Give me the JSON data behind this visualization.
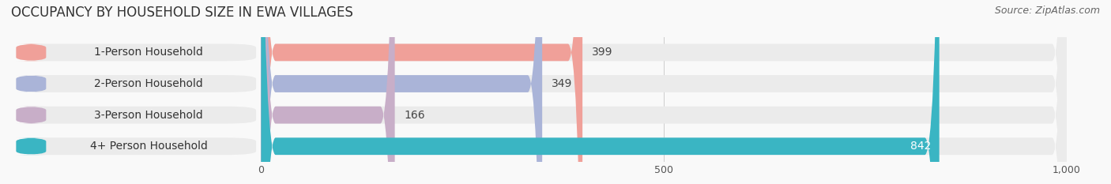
{
  "title": "OCCUPANCY BY HOUSEHOLD SIZE IN EWA VILLAGES",
  "source": "Source: ZipAtlas.com",
  "categories": [
    "1-Person Household",
    "2-Person Household",
    "3-Person Household",
    "4+ Person Household"
  ],
  "values": [
    399,
    349,
    166,
    842
  ],
  "bar_colors": [
    "#f0a099",
    "#aab4d8",
    "#c8aec8",
    "#3ab5c3"
  ],
  "track_color": "#ebebeb",
  "background_color": "#f9f9f9",
  "xlim": [
    0,
    1000
  ],
  "xticks": [
    0,
    500,
    1000
  ],
  "xtick_labels": [
    "0",
    "500",
    "1,000"
  ],
  "title_fontsize": 12,
  "source_fontsize": 9,
  "label_fontsize": 10,
  "value_fontsize": 10,
  "bar_height": 0.55,
  "figsize": [
    14.06,
    2.33
  ],
  "dpi": 100
}
